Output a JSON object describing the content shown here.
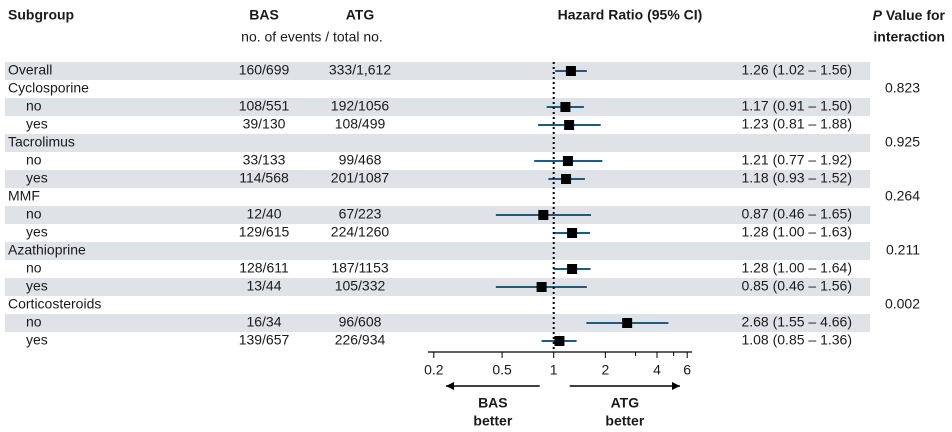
{
  "chart_data": {
    "type": "forest",
    "headers": {
      "subgroup": "Subgroup",
      "bas": "BAS",
      "atg": "ATG",
      "events": "no. of events / total no.",
      "hr": "Hazard Ratio (95% CI)",
      "p_italic": "P",
      "p_line1": "Value for",
      "p_line2": "interaction"
    },
    "overall": {
      "label": "Overall",
      "bas": "160/699",
      "atg": "333/1,612",
      "hr": 1.26,
      "lo": 1.02,
      "hi": 1.56,
      "value_label": "1.26 (1.02 – 1.56)"
    },
    "groups": [
      {
        "label": "Cyclosporine",
        "p": 0.823,
        "rows": [
          {
            "label": "no",
            "bas": "108/551",
            "atg": "192/1056",
            "hr": 1.17,
            "lo": 0.91,
            "hi": 1.5,
            "value_label": "1.17 (0.91 – 1.50)"
          },
          {
            "label": "yes",
            "bas": "39/130",
            "atg": "108/499",
            "hr": 1.23,
            "lo": 0.81,
            "hi": 1.88,
            "value_label": "1.23 (0.81 – 1.88)"
          }
        ]
      },
      {
        "label": "Tacrolimus",
        "p": 0.925,
        "rows": [
          {
            "label": "no",
            "bas": "33/133",
            "atg": "99/468",
            "hr": 1.21,
            "lo": 0.77,
            "hi": 1.92,
            "value_label": "1.21 (0.77 – 1.92)"
          },
          {
            "label": "yes",
            "bas": "114/568",
            "atg": "201/1087",
            "hr": 1.18,
            "lo": 0.93,
            "hi": 1.52,
            "value_label": "1.18 (0.93 – 1.52)"
          }
        ]
      },
      {
        "label": "MMF",
        "p": 0.264,
        "rows": [
          {
            "label": "no",
            "bas": "12/40",
            "atg": "67/223",
            "hr": 0.87,
            "lo": 0.46,
            "hi": 1.65,
            "value_label": "0.87 (0.46 – 1.65)"
          },
          {
            "label": "yes",
            "bas": "129/615",
            "atg": "224/1260",
            "hr": 1.28,
            "lo": 1.0,
            "hi": 1.63,
            "value_label": "1.28 (1.00 – 1.63)"
          }
        ]
      },
      {
        "label": "Azathioprine",
        "p": 0.211,
        "rows": [
          {
            "label": "no",
            "bas": "128/611",
            "atg": "187/1153",
            "hr": 1.28,
            "lo": 1.0,
            "hi": 1.64,
            "value_label": "1.28 (1.00 – 1.64)"
          },
          {
            "label": "yes",
            "bas": "13/44",
            "atg": "105/332",
            "hr": 0.85,
            "lo": 0.46,
            "hi": 1.56,
            "value_label": "0.85 (0.46 – 1.56)"
          }
        ]
      },
      {
        "label": "Corticosteroids",
        "p": 0.002,
        "rows": [
          {
            "label": "no",
            "bas": "16/34",
            "atg": "96/608",
            "hr": 2.68,
            "lo": 1.55,
            "hi": 4.66,
            "value_label": "2.68 (1.55 – 4.66)"
          },
          {
            "label": "yes",
            "bas": "139/657",
            "atg": "226/934",
            "hr": 1.08,
            "lo": 0.85,
            "hi": 1.36,
            "value_label": "1.08 (0.85 – 1.36)"
          }
        ]
      }
    ],
    "xlog": true,
    "xlim": [
      0.185,
      6.4
    ],
    "xticks": [
      0.2,
      0.5,
      1,
      2,
      4,
      6
    ],
    "minor_xticks": [
      3,
      5
    ],
    "ref_line": 1,
    "ci_color": "#1d5b82",
    "marker_color": "#000000",
    "band_color": "#dfe2e6",
    "favors": [
      {
        "lines": [
          "BAS",
          "better"
        ]
      },
      {
        "lines": [
          "ATG",
          "better"
        ]
      }
    ]
  }
}
